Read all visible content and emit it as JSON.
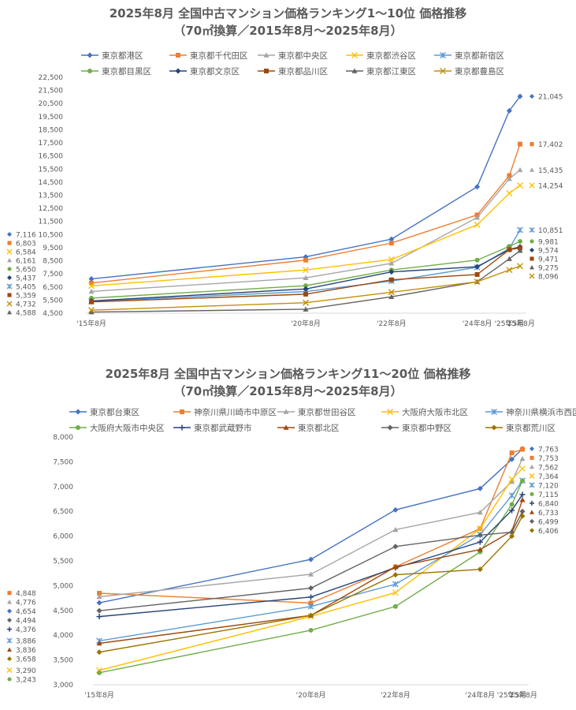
{
  "chart_data": [
    {
      "type": "line",
      "title": "2025年8月 全国中古マンション価格ランキング1～10位 価格推移",
      "subtitle": "（70㎡換算／2015年8月～2025年8月）",
      "xlabel": "",
      "ylabel": "",
      "ylim": [
        4500,
        22500
      ],
      "ytick_step": 1000,
      "ytick_labels": [
        "4,500",
        "5,500",
        "6,500",
        "7,500",
        "8,500",
        "9,500",
        "10,500",
        "11,500",
        "12,500",
        "13,500",
        "14,500",
        "15,500",
        "16,500",
        "17,500",
        "18,500",
        "19,500",
        "20,500",
        "21,500",
        "22,500"
      ],
      "x": [
        "'15年8月",
        "'20年8月",
        "'22年8月",
        "'24年8月",
        "'25年5月",
        "'25年8月"
      ],
      "x_months": [
        0,
        60,
        84,
        108,
        117,
        120
      ],
      "grid": false,
      "legend_position": "top",
      "series": [
        {
          "name": "東京都港区",
          "color": "#4472C4",
          "marker": "diamond",
          "values": [
            7116,
            8800,
            10150,
            14150,
            19950,
            21045
          ],
          "start_label": "7,116",
          "end_label": "21,045"
        },
        {
          "name": "東京都千代田区",
          "color": "#ED7D31",
          "marker": "square",
          "values": [
            6803,
            8550,
            9850,
            12000,
            15000,
            17402
          ],
          "start_label": "6,803",
          "end_label": "17,402"
        },
        {
          "name": "東京都中央区",
          "color": "#A5A5A5",
          "marker": "triangle",
          "values": [
            6161,
            7200,
            8300,
            11800,
            14750,
            15435
          ],
          "start_label": "6,161",
          "end_label": "15,435"
        },
        {
          "name": "東京都渋谷区",
          "color": "#FFC000",
          "marker": "x",
          "values": [
            6584,
            7800,
            8600,
            11250,
            13650,
            14254
          ],
          "start_label": "6,584",
          "end_label": "14,254"
        },
        {
          "name": "東京都新宿区",
          "color": "#5B9BD5",
          "marker": "star",
          "values": [
            5405,
            6150,
            6950,
            8000,
            9450,
            10851
          ],
          "start_label": "5,405",
          "end_label": "10,851"
        },
        {
          "name": "東京都目黒区",
          "color": "#70AD47",
          "marker": "circle",
          "values": [
            5650,
            6600,
            7800,
            8550,
            9600,
            9981
          ],
          "start_label": "5,650",
          "end_label": "9,981"
        },
        {
          "name": "東京都文京区",
          "color": "#264478",
          "marker": "diamond",
          "values": [
            5437,
            6350,
            7650,
            8050,
            9350,
            9574
          ],
          "start_label": "5,437",
          "end_label": "9,574"
        },
        {
          "name": "東京都品川区",
          "color": "#9E480E",
          "marker": "square",
          "values": [
            5359,
            5950,
            7050,
            7450,
            9350,
            9471
          ],
          "start_label": "5,359",
          "end_label": "9,471"
        },
        {
          "name": "東京都江東区",
          "color": "#636363",
          "marker": "triangle",
          "values": [
            4588,
            4800,
            5750,
            6900,
            8650,
            9275
          ],
          "start_label": "4,588",
          "end_label": "9,275"
        },
        {
          "name": "東京都豊島区",
          "color": "#C28F05",
          "marker": "x",
          "values": [
            4732,
            5300,
            6100,
            6900,
            7800,
            8096
          ],
          "start_label": "4,732",
          "end_label": "8,096"
        }
      ]
    },
    {
      "type": "line",
      "title": "2025年8月 全国中古マンション価格ランキング11～20位 価格推移",
      "subtitle": "（70㎡換算／2015年8月～2025年8月）",
      "xlabel": "",
      "ylabel": "",
      "ylim": [
        3000,
        8000
      ],
      "ytick_step": 500,
      "ytick_labels": [
        "3,000",
        "3,500",
        "4,000",
        "4,500",
        "5,000",
        "5,500",
        "6,000",
        "6,500",
        "7,000",
        "7,500",
        "8,000"
      ],
      "x": [
        "'15年8月",
        "'20年8月",
        "'22年8月",
        "'24年8月",
        "'25年5月",
        "'25年8月"
      ],
      "x_months": [
        0,
        60,
        84,
        108,
        117,
        120
      ],
      "grid": false,
      "legend_position": "top",
      "series": [
        {
          "name": "東京都台東区",
          "color": "#4472C4",
          "marker": "diamond",
          "values": [
            4654,
            5530,
            6530,
            6960,
            7550,
            7763
          ],
          "start_label": "4,654",
          "end_label": "7,763"
        },
        {
          "name": "神奈川県川崎市中原区",
          "color": "#ED7D31",
          "marker": "square",
          "values": [
            4848,
            4650,
            5380,
            6150,
            7680,
            7753
          ],
          "start_label": "4,848",
          "end_label": "7,753"
        },
        {
          "name": "東京都世田谷区",
          "color": "#A5A5A5",
          "marker": "triangle",
          "values": [
            4776,
            5230,
            6130,
            6480,
            7100,
            7562
          ],
          "start_label": "4,776",
          "end_label": "7,562"
        },
        {
          "name": "大阪府大阪市北区",
          "color": "#FFC000",
          "marker": "x",
          "values": [
            3290,
            4380,
            4860,
            6150,
            7150,
            7364
          ],
          "start_label": "3,290",
          "end_label": "7,364"
        },
        {
          "name": "神奈川県横浜市西区",
          "color": "#5B9BD5",
          "marker": "star",
          "values": [
            3886,
            4580,
            5030,
            6030,
            6820,
            7120
          ],
          "start_label": "3,886",
          "end_label": "7,120"
        },
        {
          "name": "大阪府大阪市中央区",
          "color": "#70AD47",
          "marker": "circle",
          "values": [
            3243,
            4100,
            4580,
            5680,
            6640,
            7115
          ],
          "start_label": "3,243",
          "end_label": "7,115"
        },
        {
          "name": "東京都武蔵野市",
          "color": "#264478",
          "marker": "plus",
          "values": [
            4376,
            4770,
            5360,
            5880,
            6520,
            6840
          ],
          "start_label": "4,376",
          "end_label": "6,840"
        },
        {
          "name": "東京都北区",
          "color": "#9E480E",
          "marker": "triangle",
          "values": [
            3836,
            4400,
            5380,
            5730,
            6100,
            6733
          ],
          "start_label": "3,836",
          "end_label": "6,733"
        },
        {
          "name": "東京都中野区",
          "color": "#636363",
          "marker": "diamond",
          "values": [
            4494,
            4950,
            5790,
            6020,
            6080,
            6499
          ],
          "start_label": "4,494",
          "end_label": "6,499"
        },
        {
          "name": "東京都荒川区",
          "color": "#997300",
          "marker": "diamond",
          "values": [
            3658,
            4400,
            5220,
            5330,
            6000,
            6406
          ],
          "start_label": "3,658",
          "end_label": "6,406"
        }
      ]
    }
  ]
}
